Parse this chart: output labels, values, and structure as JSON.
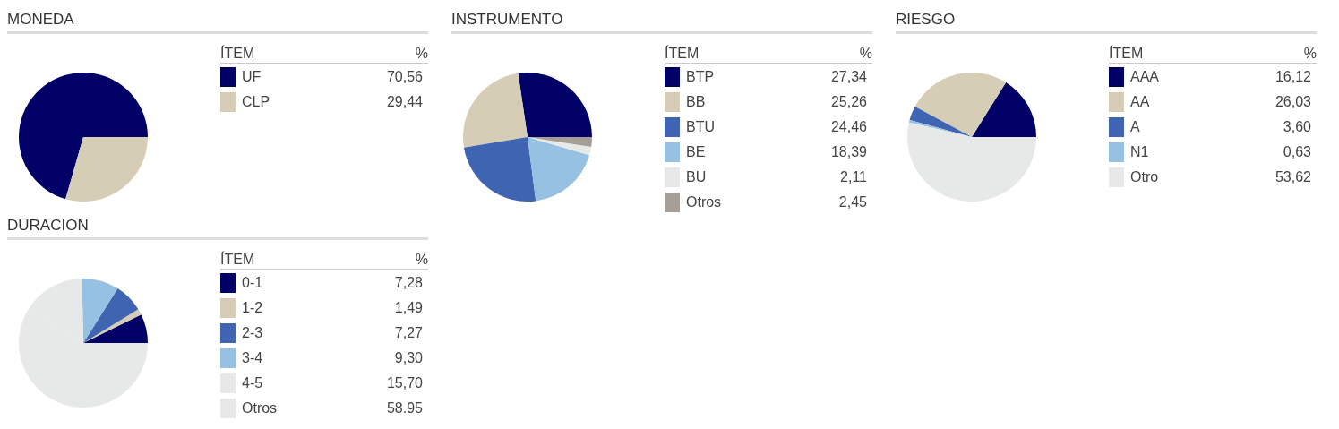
{
  "chart_data": [
    {
      "type": "pie",
      "title": "MONEDA",
      "legend_title": "ÍTEM",
      "annotations": [
        "%"
      ],
      "legend": "right",
      "categories": [
        "UF",
        "CLP"
      ],
      "values": [
        70.56,
        29.44
      ],
      "value_labels": [
        "70,56",
        "29,44"
      ],
      "colors": [
        "#000066",
        "#d5cdb6"
      ]
    },
    {
      "type": "pie",
      "title": "INSTRUMENTO",
      "legend_title": "ÍTEM",
      "annotations": [
        "%"
      ],
      "legend": "right",
      "categories": [
        "BTP",
        "BB",
        "BTU",
        "BE",
        "BU",
        "Otros"
      ],
      "values": [
        27.34,
        25.26,
        24.46,
        18.39,
        2.11,
        2.45
      ],
      "value_labels": [
        "27,34",
        "25,26",
        "24,46",
        "18,39",
        "2,11",
        "2,45"
      ],
      "colors": [
        "#000066",
        "#d5cdb6",
        "#3f64b1",
        "#97c1e2",
        "#e6e9e8",
        "#a69e96"
      ]
    },
    {
      "type": "pie",
      "title": "RIESGO",
      "legend_title": "ÍTEM",
      "annotations": [
        "%"
      ],
      "legend": "right",
      "categories": [
        "AAA",
        "AA",
        "A",
        "N1",
        "Otro"
      ],
      "values": [
        16.12,
        26.03,
        3.6,
        0.63,
        53.62
      ],
      "value_labels": [
        "16,12",
        "26,03",
        "3,60",
        "0,63",
        "53,62"
      ],
      "colors": [
        "#000066",
        "#d5cdb6",
        "#3f64b1",
        "#97c1e2",
        "#e6e9e8"
      ]
    },
    {
      "type": "pie",
      "title": "DURACION",
      "legend_title": "ÍTEM",
      "annotations": [
        "%"
      ],
      "legend": "right",
      "categories": [
        "0-1",
        "1-2",
        "2-3",
        "3-4",
        "4-5",
        "Otros"
      ],
      "values": [
        7.28,
        1.49,
        7.27,
        9.3,
        15.7,
        58.95
      ],
      "value_labels": [
        "7,28",
        "1,49",
        "7,27",
        "9,30",
        "15,70",
        "58.95"
      ],
      "colors": [
        "#000066",
        "#d5cdb6",
        "#3f64b1",
        "#97c1e2",
        "#e6e9e8",
        "#e6e9e8"
      ]
    }
  ]
}
